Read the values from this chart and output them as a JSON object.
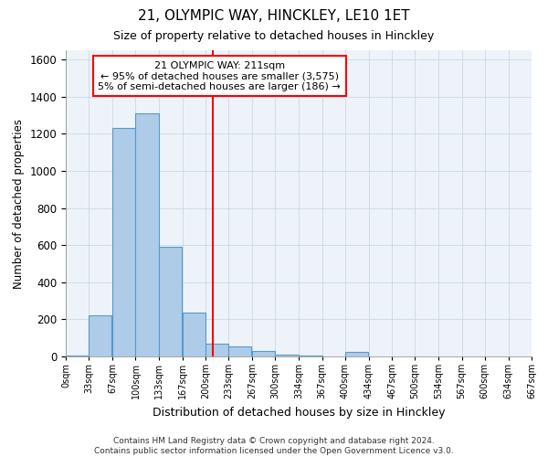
{
  "title1": "21, OLYMPIC WAY, HINCKLEY, LE10 1ET",
  "title2": "Size of property relative to detached houses in Hinckley",
  "xlabel": "Distribution of detached houses by size in Hinckley",
  "ylabel": "Number of detached properties",
  "footer": "Contains HM Land Registry data © Crown copyright and database right 2024.\nContains public sector information licensed under the Open Government Licence v3.0.",
  "bin_edges": [
    0,
    33,
    67,
    100,
    133,
    167,
    200,
    233,
    267,
    300,
    334,
    367,
    400,
    434,
    467,
    500,
    534,
    567,
    600,
    634,
    667
  ],
  "bin_labels": [
    "0sqm",
    "33sqm",
    "67sqm",
    "100sqm",
    "133sqm",
    "167sqm",
    "200sqm",
    "233sqm",
    "267sqm",
    "300sqm",
    "334sqm",
    "367sqm",
    "400sqm",
    "434sqm",
    "467sqm",
    "500sqm",
    "534sqm",
    "567sqm",
    "600sqm",
    "634sqm",
    "667sqm"
  ],
  "bar_heights": [
    5,
    220,
    1230,
    1310,
    590,
    235,
    70,
    55,
    30,
    10,
    3,
    0,
    25,
    0,
    0,
    0,
    0,
    0,
    0,
    0
  ],
  "bar_color": "#AECCE8",
  "bar_edge_color": "#5599CC",
  "vline_x": 211,
  "vline_color": "red",
  "annotation_text": "21 OLYMPIC WAY: 211sqm\n← 95% of detached houses are smaller (3,575)\n5% of semi-detached houses are larger (186) →",
  "annotation_box_color": "white",
  "annotation_box_edge_color": "red",
  "ylim": [
    0,
    1650
  ],
  "yticks": [
    0,
    200,
    400,
    600,
    800,
    1000,
    1200,
    1400,
    1600
  ],
  "grid_color": "#C8D8E8",
  "bg_color": "#EEF3FA"
}
